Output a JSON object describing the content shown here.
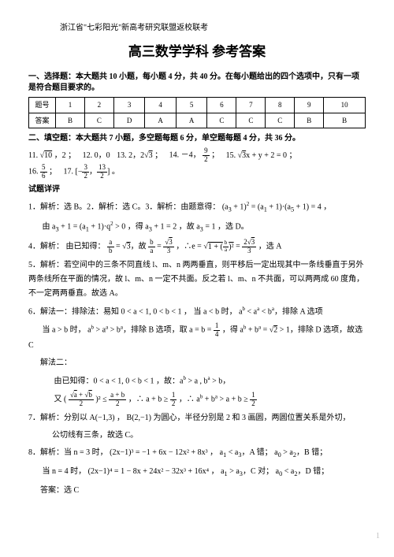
{
  "source": "浙江省\"七彩阳光\"新高考研究联盟返校联考",
  "title": "高三数学学科  参考答案",
  "section1": {
    "heading": "一、选择题：本大题共 10 小题，每小题 4 分，共 40 分。在每小题给出的四个选项中，只有一项是符合题目要求的。",
    "row1_label": "题号",
    "row2_label": "答案",
    "nums": [
      "1",
      "2",
      "3",
      "4",
      "5",
      "6",
      "7",
      "8",
      "9",
      "10"
    ],
    "ans": [
      "B",
      "C",
      "D",
      "A",
      "A",
      "C",
      "C",
      "C",
      "B",
      "B"
    ]
  },
  "section2": {
    "heading": "二、填空题：本大题共 7 小题，多空题每题 6 分，单空题每题 4 分，共 36 分。",
    "q11_num": "11.",
    "q11_a": "10",
    "q11_b": "，2 ；",
    "q12_num": "12.",
    "q12_a": "0，0",
    "q13_num": "13.",
    "q13_a": "2，2",
    "q13_b": "3",
    "q13_c": "；",
    "q14_num": "14.",
    "q14_a": "－4，",
    "q14_n": "9",
    "q14_d": "2",
    "q14_e": "；",
    "q15_num": "15.",
    "q15_a": "3",
    "q15_b": "x + y + 2 = 0 ；",
    "q16_num": "16.",
    "q16_n": "5",
    "q16_d": "6",
    "q16_c": "；",
    "q17_num": "17.",
    "q17_a": "[−",
    "q17_n1": "3",
    "q17_d1": "2",
    "q17_b": "，",
    "q17_n2": "13",
    "q17_d2": "2",
    "q17_c": "] 。"
  },
  "detail_label": "试题详评",
  "p1": {
    "prefix": "1．解析：选 B。2．解析：选 C。3．解析：由题意得： (a",
    "mid1": " + 1)",
    "mid2": " = (a",
    "mid3": " + 1)·(a",
    "mid4": " + 1) = 4 ，",
    "line2a": "由 a",
    "line2b": " + 1 = (a",
    "line2c": " + 1)·q",
    "line2d": " > 0 ，得 a",
    "line2e": " + 1 = 2 ，故 a",
    "line2f": " = 1 ，选 D。"
  },
  "p4": {
    "prefix": "4．解析： 由已知得：",
    "fr1n": "a",
    "fr1d": "b",
    "eq1": " = ",
    "r1": "3",
    "txt1": "，故 ",
    "fr2n": "b",
    "fr2d": "a",
    "eq2": " = ",
    "r2n": "3",
    "r2d": "3",
    "txt2": "，∴e = ",
    "inside": "1 + (",
    "frIn_n": "b",
    "frIn_d": "a",
    "after": ")²",
    "eq3": " = ",
    "r3n": "2",
    "r3m": "3",
    "r3d": "3",
    "end": "，选 A"
  },
  "p5": "5．解析：若空间中的三条不同直线 l、m、n 两两垂直，则平移后一定出现其中一条线垂直于另外两条线所在平面的情况，故 l、m、n 一定不共面。反之若 l、m、n 不共面，可以两两成 60 度角，不一定两两垂直。故选 A。",
  "p6a": {
    "prefix": "6．解法一：排除法：易知 0 < a < 1, 0 < b < 1 ， 当 a < b 时， a",
    "m1": " < a",
    "m2": " < b",
    "end": "，排除 A 选项"
  },
  "p6b": {
    "prefix": "当 a > b 时， a",
    "m1": " > a",
    "m2": " > b",
    "mid": "，排除 B 选项，取 a = b = ",
    "frn": "1",
    "frd": "4",
    "mid2": "，得 a",
    "m3": " + b",
    "eq": " = ",
    "root": "2",
    "gt": " > 1，排除 D 选项，故选 C"
  },
  "p6c_label": "解法二：",
  "p6c_line1": "由已知得：0 < a < 1, 0 < b < 1 ，故：a",
  "p6c_l1b": " > a , b",
  "p6c_l1c": " > b，",
  "p6d": {
    "pre": "又 (",
    "rn1": "a",
    "plus": " + ",
    "rn2": "b",
    "close": ")² ≤ ",
    "frn": "a + b",
    "frd": "2",
    "c1": "，∴ a + b ≥ ",
    "frn2": "1",
    "frd2": "2",
    "c2": "，∴ a",
    "m1": " + b",
    "m2": " > a + b ≥ ",
    "frn3": "1",
    "frd3": "2"
  },
  "p7a": "7．解析：分别以 A(−1,3) ， B(2,−1) 为圆心，半径分别是 2 和 3 画圆，两圆位置关系是外切，",
  "p7b": "公切线有三条，故选 C。",
  "p8a": {
    "pre": "8．解析：当 n = 3 时， (2x−1)³ = −1 + 6x − 12x² + 8x³ ， a",
    "s1": "1",
    "m1": "   < a",
    "s2": "3",
    "m2": "，A 错； a",
    "s3": "0",
    "m3": "   > a",
    "s4": "2",
    "m4": "，B 错；"
  },
  "p8b": {
    "pre": "当 n = 4 时， (2x−1)⁴ = 1 − 8x + 24x² − 32x³ + 16x⁴ ， a",
    "s1": "1",
    "m1": "   > a",
    "s2": "3",
    "m2": "，C 对； a",
    "s3": "0",
    "m3": "   < a",
    "s4": "2",
    "m4": "，D 错；"
  },
  "p8c": "答案：选 C",
  "pagenum": "1"
}
